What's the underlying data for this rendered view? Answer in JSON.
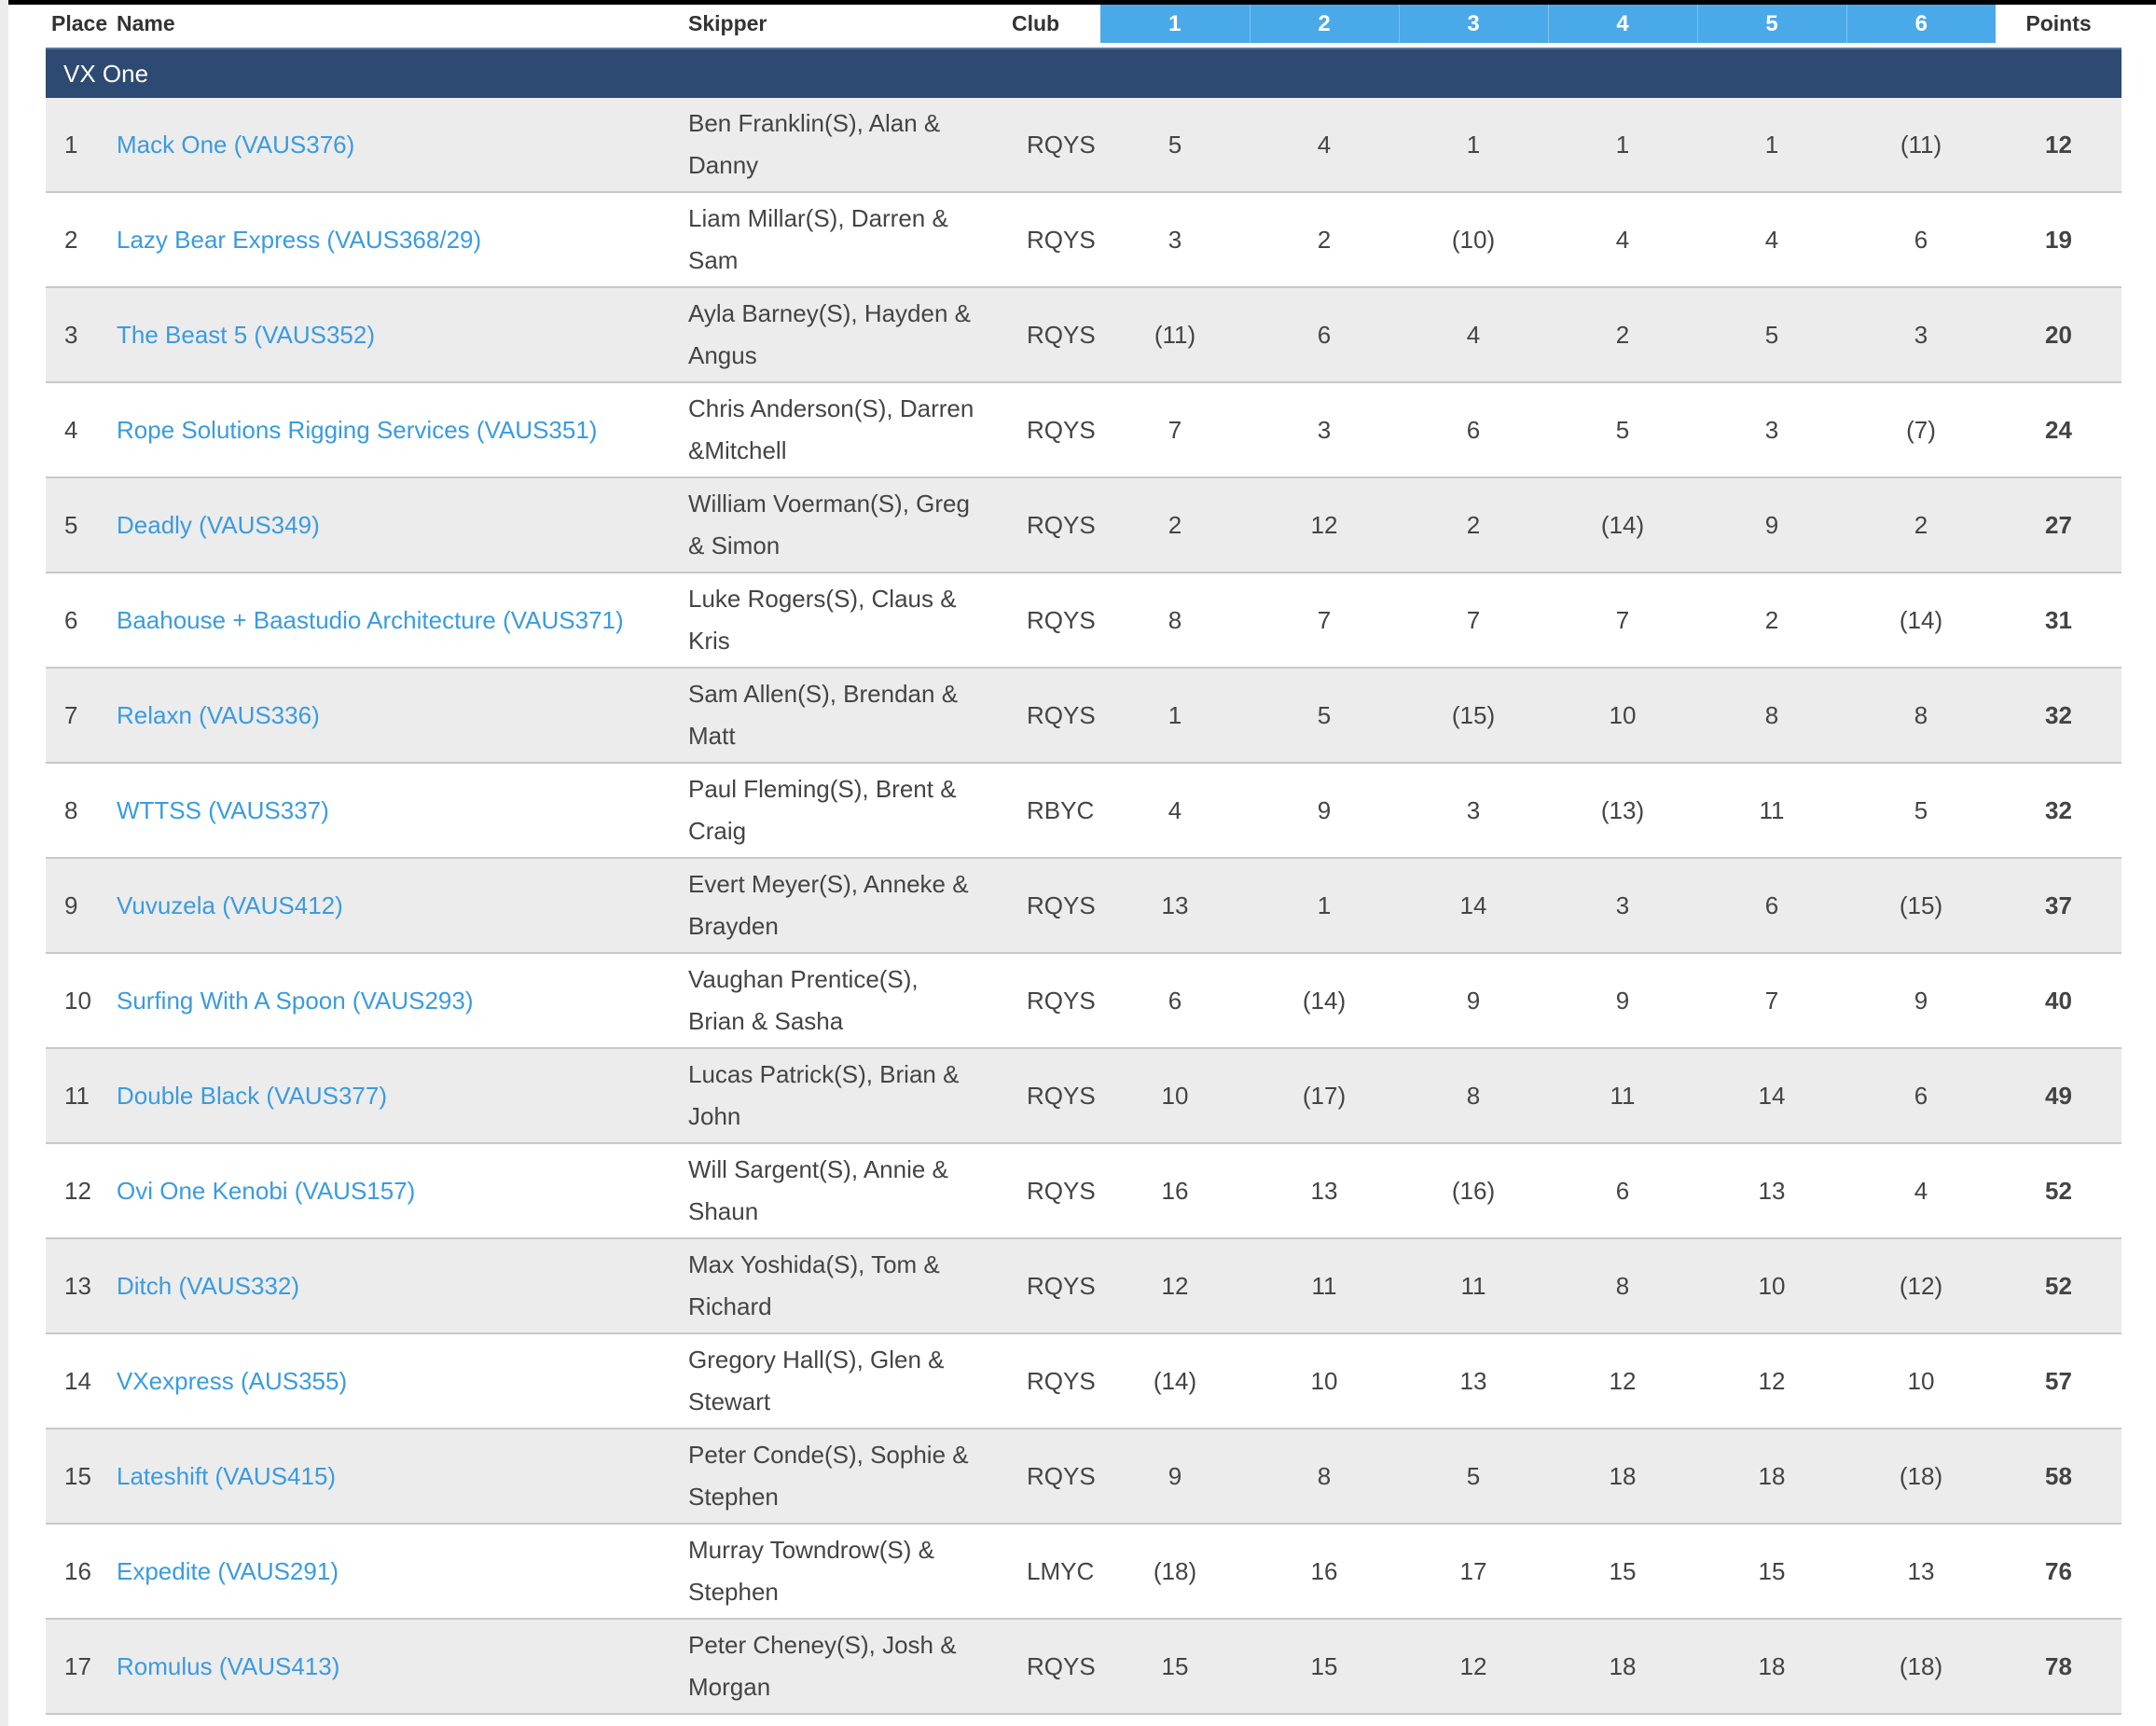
{
  "table": {
    "headers": {
      "place": "Place",
      "name": "Name",
      "skipper": "Skipper",
      "club": "Club",
      "races": [
        "1",
        "2",
        "3",
        "4",
        "5",
        "6"
      ],
      "points": "Points"
    },
    "group": "VX One",
    "rows": [
      {
        "place": "1",
        "name": "Mack One (VAUS376)",
        "skipper": "Ben Franklin(S), Alan & Danny",
        "club": "RQYS",
        "races": [
          "5",
          "4",
          "1",
          "1",
          "1",
          "(11)"
        ],
        "points": "12"
      },
      {
        "place": "2",
        "name": "Lazy Bear Express (VAUS368/29)",
        "skipper": "Liam Millar(S), Darren & Sam",
        "club": "RQYS",
        "races": [
          "3",
          "2",
          "(10)",
          "4",
          "4",
          "6"
        ],
        "points": "19"
      },
      {
        "place": "3",
        "name": "The Beast 5 (VAUS352)",
        "skipper": "Ayla Barney(S), Hayden & Angus",
        "club": "RQYS",
        "races": [
          "(11)",
          "6",
          "4",
          "2",
          "5",
          "3"
        ],
        "points": "20"
      },
      {
        "place": "4",
        "name": "Rope Solutions Rigging Services (VAUS351)",
        "skipper": "Chris Anderson(S), Darren &Mitchell",
        "club": "RQYS",
        "races": [
          "7",
          "3",
          "6",
          "5",
          "3",
          "(7)"
        ],
        "points": "24"
      },
      {
        "place": "5",
        "name": "Deadly (VAUS349)",
        "skipper": "William Voerman(S), Greg & Simon",
        "club": "RQYS",
        "races": [
          "2",
          "12",
          "2",
          "(14)",
          "9",
          "2"
        ],
        "points": "27"
      },
      {
        "place": "6",
        "name": "Baahouse + Baastudio Architecture (VAUS371)",
        "skipper": "Luke Rogers(S), Claus & Kris",
        "club": "RQYS",
        "races": [
          "8",
          "7",
          "7",
          "7",
          "2",
          "(14)"
        ],
        "points": "31"
      },
      {
        "place": "7",
        "name": "Relaxn (VAUS336)",
        "skipper": "Sam Allen(S), Brendan & Matt",
        "club": "RQYS",
        "races": [
          "1",
          "5",
          "(15)",
          "10",
          "8",
          "8"
        ],
        "points": "32"
      },
      {
        "place": "8",
        "name": "WTTSS (VAUS337)",
        "skipper": "Paul Fleming(S), Brent & Craig",
        "club": "RBYC",
        "races": [
          "4",
          "9",
          "3",
          "(13)",
          "11",
          "5"
        ],
        "points": "32"
      },
      {
        "place": "9",
        "name": "Vuvuzela (VAUS412)",
        "skipper": "Evert Meyer(S), Anneke & Brayden",
        "club": "RQYS",
        "races": [
          "13",
          "1",
          "14",
          "3",
          "6",
          "(15)"
        ],
        "points": "37"
      },
      {
        "place": "10",
        "name": "Surfing With A Spoon (VAUS293)",
        "skipper": "Vaughan Prentice(S), Brian & Sasha",
        "club": "RQYS",
        "races": [
          "6",
          "(14)",
          "9",
          "9",
          "7",
          "9"
        ],
        "points": "40"
      },
      {
        "place": "11",
        "name": "Double Black (VAUS377)",
        "skipper": "Lucas Patrick(S), Brian & John",
        "club": "RQYS",
        "races": [
          "10",
          "(17)",
          "8",
          "11",
          "14",
          "6"
        ],
        "points": "49"
      },
      {
        "place": "12",
        "name": "Ovi One Kenobi (VAUS157)",
        "skipper": "Will Sargent(S), Annie & Shaun",
        "club": "RQYS",
        "races": [
          "16",
          "13",
          "(16)",
          "6",
          "13",
          "4"
        ],
        "points": "52"
      },
      {
        "place": "13",
        "name": "Ditch (VAUS332)",
        "skipper": "Max Yoshida(S), Tom & Richard",
        "club": "RQYS",
        "races": [
          "12",
          "11",
          "11",
          "8",
          "10",
          "(12)"
        ],
        "points": "52"
      },
      {
        "place": "14",
        "name": "VXexpress (AUS355)",
        "skipper": "Gregory Hall(S), Glen & Stewart",
        "club": "RQYS",
        "races": [
          "(14)",
          "10",
          "13",
          "12",
          "12",
          "10"
        ],
        "points": "57"
      },
      {
        "place": "15",
        "name": "Lateshift (VAUS415)",
        "skipper": "Peter Conde(S), Sophie & Stephen",
        "club": "RQYS",
        "races": [
          "9",
          "8",
          "5",
          "18",
          "18",
          "(18)"
        ],
        "points": "58"
      },
      {
        "place": "16",
        "name": "Expedite (VAUS291)",
        "skipper": "Murray Towndrow(S) & Stephen",
        "club": "LMYC",
        "races": [
          "(18)",
          "16",
          "17",
          "15",
          "15",
          "13"
        ],
        "points": "76"
      },
      {
        "place": "17",
        "name": "Romulus (VAUS413)",
        "skipper": "Peter Cheney(S), Josh & Morgan",
        "club": "RQYS",
        "races": [
          "15",
          "15",
          "12",
          "18",
          "18",
          "(18)"
        ],
        "points": "78"
      }
    ]
  }
}
